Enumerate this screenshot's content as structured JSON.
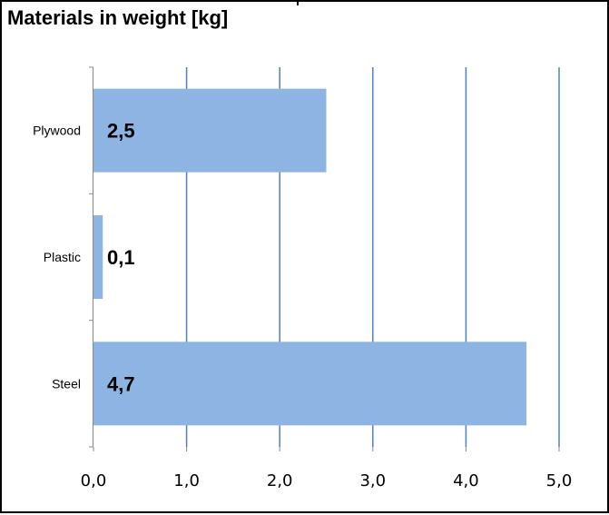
{
  "chart_data": {
    "type": "bar",
    "orientation": "horizontal",
    "title": "Materials in weight [kg]",
    "categories": [
      "Plywood",
      "Plastic",
      "Steel"
    ],
    "values": [
      2.5,
      0.1,
      4.65
    ],
    "data_labels": [
      "2,5",
      "0,1",
      "4,7"
    ],
    "xlim": [
      0,
      5
    ],
    "x_ticks": [
      0,
      1,
      2,
      3,
      4,
      5
    ],
    "x_tick_labels": [
      "0,0",
      "1,0",
      "2,0",
      "3,0",
      "4,0",
      "5,0"
    ],
    "xlabel": "",
    "ylabel": "",
    "grid": "vertical",
    "legend": "none",
    "bar_color": "#8EB4E3",
    "grid_color": "#4F81BD"
  }
}
